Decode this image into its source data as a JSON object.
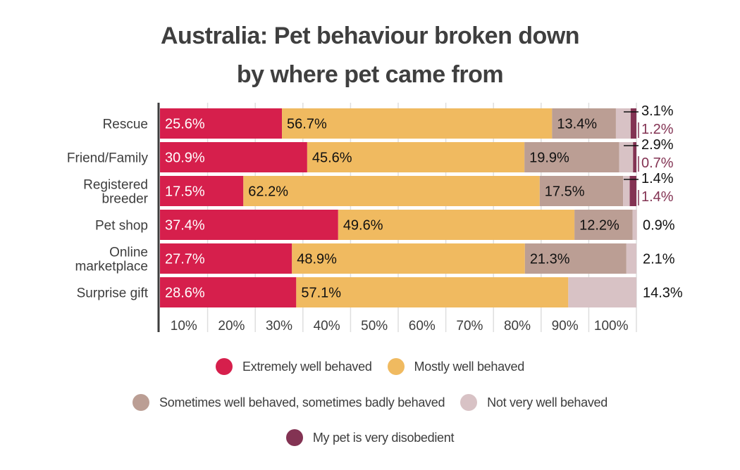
{
  "chart_data": {
    "type": "bar",
    "orientation": "horizontal",
    "stacked": true,
    "title_lines": [
      "Australia: Pet behaviour broken down",
      "by where pet came from"
    ],
    "title": "Australia: Pet behaviour broken down by where pet came from",
    "xlabel": "",
    "ylabel": "",
    "xlim": [
      0,
      100
    ],
    "x_ticks": [
      "10%",
      "20%",
      "30%",
      "40%",
      "50%",
      "60%",
      "70%",
      "80%",
      "90%",
      "100%"
    ],
    "grid": true,
    "legend_position": "bottom",
    "categories": [
      "Rescue",
      "Friend/Family",
      "Registered breeder",
      "Pet shop",
      "Online marketplace",
      "Surprise gift"
    ],
    "category_label_lines": [
      [
        "Rescue"
      ],
      [
        "Friend/Family"
      ],
      [
        "Registered",
        "breeder"
      ],
      [
        "Pet shop"
      ],
      [
        "Online",
        "marketplace"
      ],
      [
        "Surprise gift"
      ]
    ],
    "series": [
      {
        "name": "Extremely well behaved",
        "color": "#D61F4C",
        "label_color": "#ffffff",
        "values": [
          25.6,
          30.9,
          17.5,
          37.4,
          27.7,
          28.6
        ],
        "labels": [
          "25.6%",
          "30.9%",
          "17.5%",
          "37.4%",
          "27.7%",
          "28.6%"
        ]
      },
      {
        "name": "Mostly well behaved",
        "color": "#F0BA60",
        "label_color": "#111111",
        "values": [
          56.7,
          45.6,
          62.2,
          49.6,
          48.9,
          57.1
        ],
        "labels": [
          "56.7%",
          "45.6%",
          "62.2%",
          "49.6%",
          "48.9%",
          "57.1%"
        ]
      },
      {
        "name": "Sometimes well behaved, sometimes badly behaved",
        "color": "#BB9E94",
        "label_color": "#111111",
        "values": [
          13.4,
          19.9,
          17.5,
          12.2,
          21.3,
          0
        ],
        "labels": [
          "13.4%",
          "19.9%",
          "17.5%",
          "12.2%",
          "21.3%",
          ""
        ]
      },
      {
        "name": "Not very well behaved",
        "color": "#D8C2C5",
        "label_color": "#111111",
        "values": [
          3.1,
          2.9,
          1.4,
          0.9,
          2.1,
          14.3
        ],
        "labels": [
          "3.1%",
          "2.9%",
          "1.4%",
          "0.9%",
          "2.1%",
          "14.3%"
        ]
      },
      {
        "name": "My pet is very disobedient",
        "color": "#833353",
        "label_color": "#833353",
        "values": [
          1.2,
          0.7,
          1.4,
          0,
          0,
          0
        ],
        "labels": [
          "1.2%",
          "0.7%",
          "1.4%",
          "",
          "",
          ""
        ]
      }
    ]
  },
  "legend_rows": [
    [
      0,
      1
    ],
    [
      2,
      3
    ],
    [
      4
    ]
  ]
}
